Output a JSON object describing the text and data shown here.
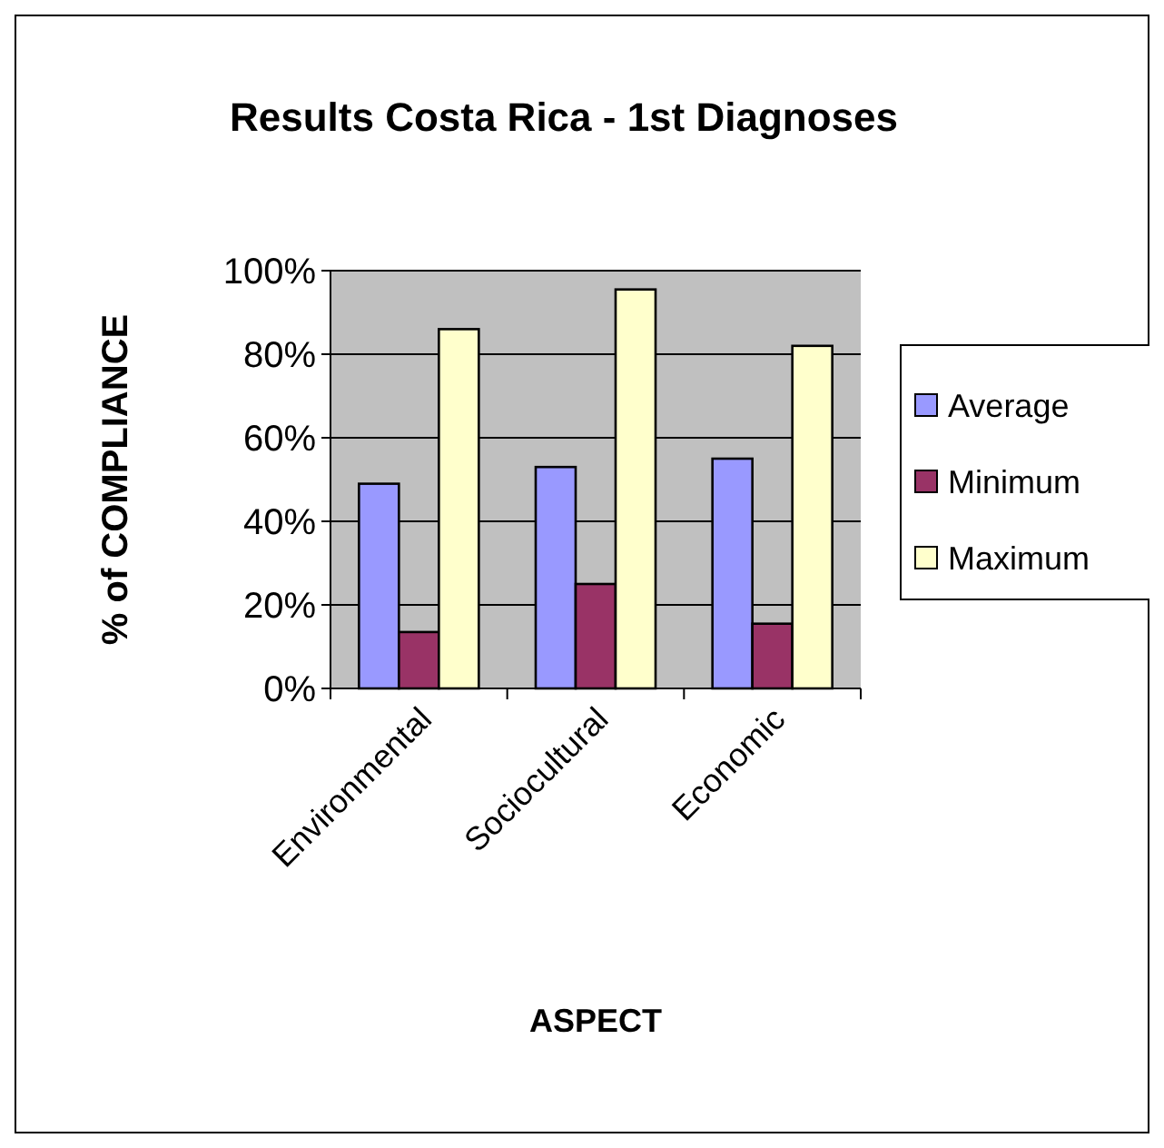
{
  "chart_data": {
    "type": "bar",
    "title": "Results Costa Rica - 1st Diagnoses",
    "xlabel": "ASPECT",
    "ylabel": "% of COMPLIANCE",
    "categories": [
      "Environmental",
      "Sociocultural",
      "Economic"
    ],
    "series": [
      {
        "name": "Average",
        "color": "#9999ff",
        "values": [
          49,
          53,
          55
        ]
      },
      {
        "name": "Minimum",
        "color": "#993366",
        "values": [
          13.5,
          25,
          15.5
        ]
      },
      {
        "name": "Maximum",
        "color": "#ffffcc",
        "values": [
          86,
          95.5,
          82
        ]
      }
    ],
    "ylim": [
      0,
      100
    ],
    "yticks": [
      {
        "value": 0,
        "label": "0%"
      },
      {
        "value": 20,
        "label": "20%"
      },
      {
        "value": 40,
        "label": "40%"
      },
      {
        "value": 60,
        "label": "60%"
      },
      {
        "value": 80,
        "label": "80%"
      },
      {
        "value": 100,
        "label": "100%"
      }
    ],
    "grid": "y",
    "legend": "right"
  }
}
